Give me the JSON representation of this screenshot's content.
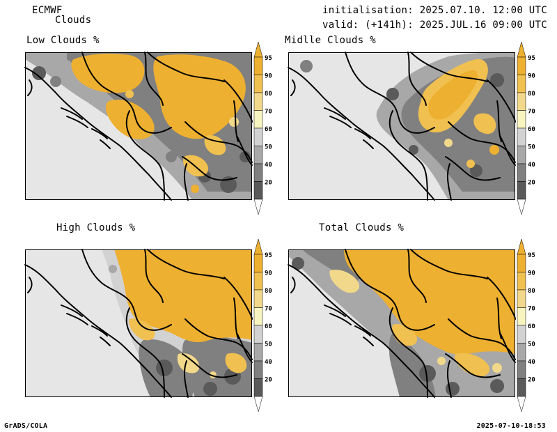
{
  "header": {
    "model": "ECMWF",
    "field": "Clouds",
    "init": "initialisation: 2025.07.10. 12:00 UTC",
    "valid": "valid: (+141h): 2025.JUL.16 09:00 UTC"
  },
  "colorbar": {
    "labels": [
      "95",
      "90",
      "80",
      "70",
      "60",
      "50",
      "40",
      "20"
    ],
    "colors": [
      "#eeb030",
      "#f0c050",
      "#f2d88a",
      "#f8f4c0",
      "#d2d2d2",
      "#a8a8a8",
      "#808080",
      "#5a5a5a",
      "#ffffff",
      "#eeb030"
    ]
  },
  "panels": [
    {
      "title": "Low Clouds %",
      "coverage": "low"
    },
    {
      "title": "Midlle Clouds %",
      "coverage": "middle"
    },
    {
      "title": "High Clouds %",
      "coverage": "high"
    },
    {
      "title": "Total Clouds %",
      "coverage": "total"
    }
  ],
  "footer": {
    "left": "GrADS/COLA",
    "right": "2025-07-10-18:53"
  }
}
